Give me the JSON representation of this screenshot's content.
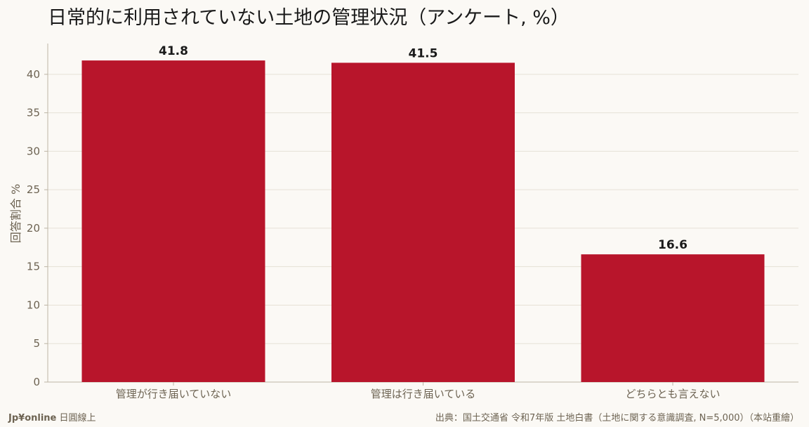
{
  "chart_data": {
    "type": "bar",
    "title": "日常的に利用されていない土地の管理状況（アンケート, %）",
    "ylabel": "回答割合 %",
    "xlabel": "",
    "categories": [
      "管理が行き届いていない",
      "管理は行き届いている",
      "どちらとも言えない"
    ],
    "values": [
      41.8,
      41.5,
      16.6
    ],
    "data_labels": [
      "41.8",
      "41.5",
      "16.6"
    ],
    "ylim": [
      0,
      44
    ],
    "yticks": [
      0,
      5,
      10,
      15,
      20,
      25,
      30,
      35,
      40
    ],
    "grid": true,
    "bar_color": "#b8152b"
  },
  "footer": {
    "brand": "Jp¥online",
    "brand_sub": "日圓線上",
    "source": "出典：国土交通省 令和7年版 土地白書（土地に関する意識調査, N=5,000）（本站重繪）"
  }
}
